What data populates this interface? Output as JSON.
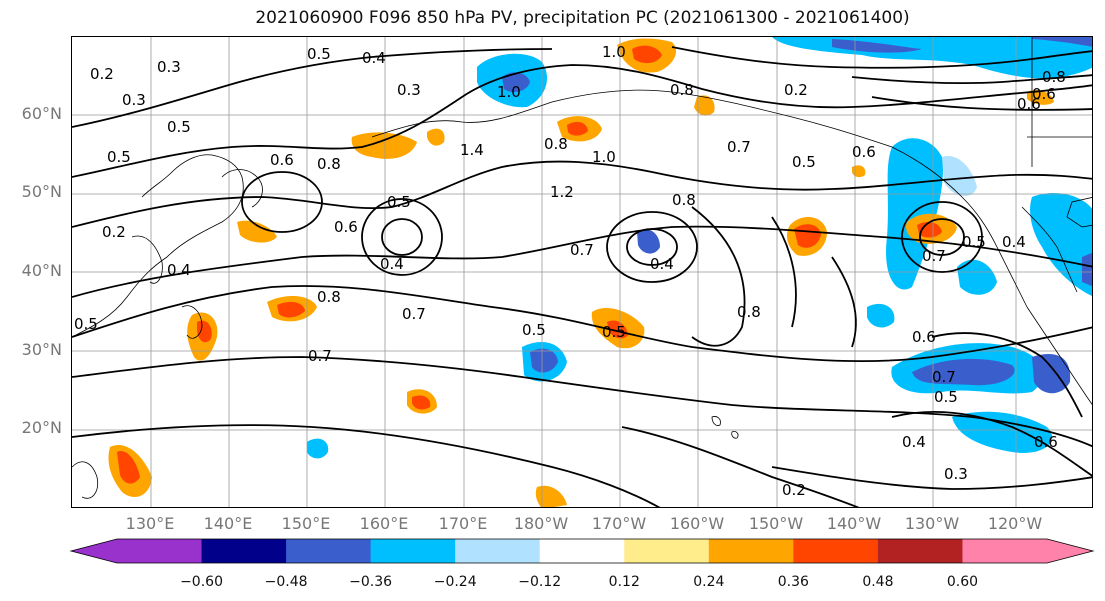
{
  "title": "2021060900 F096 850 hPa PV, precipitation PC (2021061300 - 2021061400)",
  "lat_labels": [
    "60°N",
    "50°N",
    "40°N",
    "30°N",
    "20°N"
  ],
  "lon_labels": [
    "130°E",
    "140°E",
    "150°E",
    "160°E",
    "170°E",
    "180°W",
    "170°W",
    "160°W",
    "150°W",
    "140°W",
    "130°W",
    "120°W"
  ],
  "colorbar": {
    "colors": [
      "#9932CC",
      "#00008B",
      "#3A5FCD",
      "#00BFFF",
      "#B0E2FF",
      "#FFFFFF",
      "#FFEC8B",
      "#FFA500",
      "#FF4500",
      "#B22222",
      "#FF82AB"
    ],
    "tick_labels": [
      "−0.60",
      "−0.48",
      "−0.36",
      "−0.24",
      "−0.12",
      "0.12",
      "0.24",
      "0.36",
      "0.48",
      "0.60"
    ]
  },
  "contour_labels": [
    "0.2",
    "0.3",
    "0.5",
    "0.5",
    "0.4",
    "0.3",
    "1.0",
    "1.0",
    "0.8",
    "0.5",
    "0.6",
    "0.8",
    "0.8",
    "1.0",
    "1.4",
    "1.2",
    "0.7",
    "0.4",
    "0.4",
    "0.5",
    "0.6",
    "0.4",
    "0.8",
    "0.7",
    "0.7",
    "0.5",
    "0.7",
    "0.5",
    "0.8",
    "0.2",
    "0.6",
    "0.6",
    "0.8",
    "0.6",
    "0.4",
    "0.5",
    "0.6",
    "0.7",
    "0.7",
    "0.5",
    "0.4",
    "0.3",
    "0.2",
    "0.6",
    "0.2",
    "0.3",
    "0.5",
    "0.5",
    "0.8"
  ]
}
